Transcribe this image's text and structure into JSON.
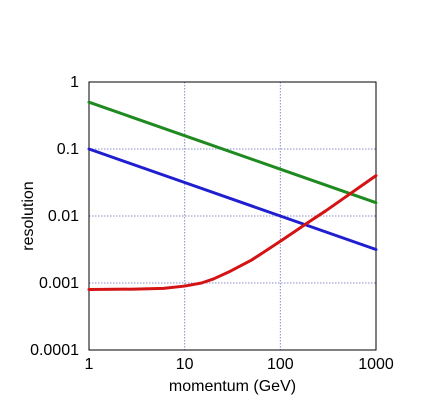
{
  "chart_data": {
    "type": "line",
    "xlabel": "momentum (GeV)",
    "ylabel": "resolution",
    "x_scale": "log",
    "y_scale": "log",
    "xlim": [
      1,
      1000
    ],
    "ylim": [
      0.0001,
      1
    ],
    "grid": true,
    "x_ticks": [
      "1",
      "10",
      "100",
      "1000"
    ],
    "y_ticks": [
      "1",
      "0.1",
      "0.01",
      "0.001",
      "0.0001"
    ],
    "series": [
      {
        "color": "#1f8a1f",
        "points": [
          [
            1,
            0.5
          ],
          [
            10,
            0.158
          ],
          [
            100,
            0.05
          ],
          [
            1000,
            0.0158
          ]
        ]
      },
      {
        "color": "#1f1fd0",
        "points": [
          [
            1,
            0.1
          ],
          [
            10,
            0.0316
          ],
          [
            100,
            0.01
          ],
          [
            1000,
            0.00316
          ]
        ]
      },
      {
        "color": "#d41414",
        "points": [
          [
            1,
            0.0008
          ],
          [
            3,
            0.00081
          ],
          [
            6,
            0.00083
          ],
          [
            10,
            0.0009
          ],
          [
            15,
            0.001
          ],
          [
            20,
            0.00115
          ],
          [
            30,
            0.0015
          ],
          [
            50,
            0.0022
          ],
          [
            70,
            0.003
          ],
          [
            100,
            0.0042
          ],
          [
            150,
            0.0062
          ],
          [
            200,
            0.0082
          ],
          [
            300,
            0.012
          ],
          [
            500,
            0.02
          ],
          [
            700,
            0.028
          ],
          [
            1000,
            0.04
          ]
        ]
      }
    ]
  }
}
